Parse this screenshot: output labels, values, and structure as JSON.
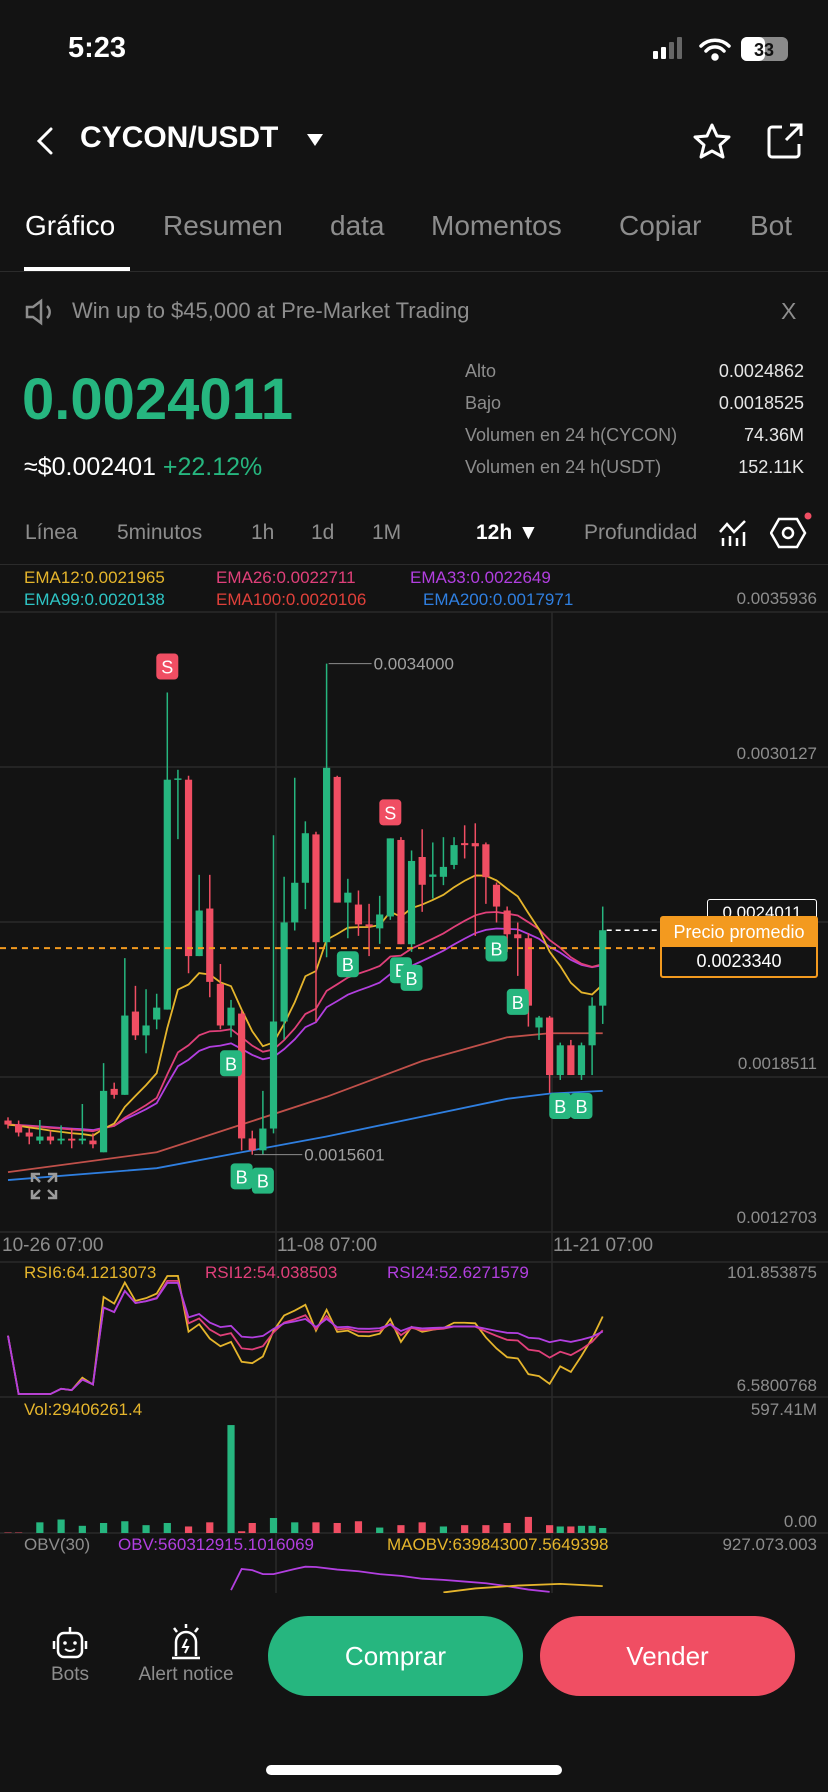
{
  "status_bar": {
    "time": "5:23",
    "battery": "33"
  },
  "header": {
    "title": "CYCON/USDT",
    "icons": [
      "back-chevron-icon",
      "dropdown-caret-icon",
      "star-icon",
      "share-icon"
    ]
  },
  "tabs": [
    {
      "label": "Gráfico",
      "active": true
    },
    {
      "label": "Resumen"
    },
    {
      "label": "data"
    },
    {
      "label": "Momentos"
    },
    {
      "label": "Copiar"
    },
    {
      "label": "Bot"
    }
  ],
  "banner": {
    "text": "Win up to $45,000 at Pre-Market Trading",
    "close": "X"
  },
  "price": {
    "last": "0.0024011",
    "usd": "≈$0.002401",
    "change": "+22.12%"
  },
  "stats": [
    {
      "label": "Alto",
      "value": "0.0024862"
    },
    {
      "label": "Bajo",
      "value": "0.0018525"
    },
    {
      "label": "Volumen en 24 h(CYCON)",
      "value": "74.36M"
    },
    {
      "label": "Volumen en 24 h(USDT)",
      "value": "152.11K"
    }
  ],
  "timeframes": {
    "items": [
      "Línea",
      "5minutos",
      "1h",
      "1d",
      "1M"
    ],
    "selected": "12h ▼",
    "depth": "Profundidad"
  },
  "ema_legend": [
    {
      "text": "EMA12:0.0021965",
      "color": "#e5b52c"
    },
    {
      "text": "EMA26:0.0022711",
      "color": "#e0407a"
    },
    {
      "text": "EMA33:0.0022649",
      "color": "#b23fe0"
    },
    {
      "text": "EMA99:0.0020138",
      "color": "#2ec4c4"
    },
    {
      "text": "EMA100:0.0020106",
      "color": "#e0403a"
    },
    {
      "text": "EMA200:0.0017971",
      "color": "#2f7fe0"
    }
  ],
  "colors": {
    "up": "#26b67f",
    "down": "#f04e63",
    "avg": "#f39a1f"
  },
  "chart_data": {
    "type": "candlestick",
    "price_axis": {
      "ticks": [
        "0.0035936",
        "0.0030127",
        "0.0024011",
        "0.0018511",
        "0.0012703"
      ],
      "range": [
        0.0012703,
        0.0035936
      ]
    },
    "time_axis": {
      "ticks": [
        "10-26 07:00",
        "11-08 07:00",
        "11-21 07:00"
      ],
      "tick_index": [
        0,
        26,
        52
      ]
    },
    "candles": [
      [
        0.001688,
        0.0017,
        0.001658,
        0.0016729
      ],
      [
        0.0016729,
        0.001688,
        0.0016283,
        0.001643
      ],
      [
        0.001643,
        0.00166,
        0.001599,
        0.001628
      ],
      [
        0.001613,
        0.00169,
        0.0016,
        0.001628
      ],
      [
        0.001628,
        0.00165,
        0.001599,
        0.001613
      ],
      [
        0.001613,
        0.00167,
        0.001599,
        0.00162
      ],
      [
        0.00162,
        0.00166,
        0.001584,
        0.001613
      ],
      [
        0.001613,
        0.00175,
        0.001599,
        0.00162
      ],
      [
        0.001613,
        0.00164,
        0.001584,
        0.001599
      ],
      [
        0.001569,
        0.0019031,
        0.001569,
        0.0017991
      ],
      [
        0.0018066,
        0.00183,
        0.00177,
        0.0017843
      ],
      [
        0.0017843,
        0.0022967,
        0.0017843,
        0.0020814
      ],
      [
        0.0020963,
        0.0021927,
        0.00199,
        0.0020071
      ],
      [
        0.0020071,
        0.00218,
        0.00194,
        0.0020442
      ],
      [
        0.0020665,
        0.0021631,
        0.00203,
        0.0021111
      ],
      [
        0.0021037,
        0.003292,
        0.0021037,
        0.0029652
      ],
      [
        0.0029652,
        0.0030023,
        0.0027424,
        0.00297
      ],
      [
        0.0029652,
        0.00298,
        0.00224,
        0.0023042
      ],
      [
        0.0023042,
        0.0026087,
        0.0023042,
        0.002475
      ],
      [
        0.0024824,
        0.0026087,
        0.00215,
        0.0022076
      ],
      [
        0.0022002,
        0.0022745,
        0.00203,
        0.0020442
      ],
      [
        0.0020442,
        0.00214,
        0.002,
        0.0021111
      ],
      [
        0.0020888,
        0.0021,
        0.0015763,
        0.0016209
      ],
      [
        0.0016209,
        0.00165,
        0.0015601,
        0.0015763
      ],
      [
        0.0015763,
        0.0017991,
        0.0015601,
        0.001658
      ],
      [
        0.001658,
        0.0027572,
        0.00164,
        0.0020591
      ],
      [
        0.0020591,
        0.0026013,
        0.0019922,
        0.0024304
      ],
      [
        0.0024304,
        0.0029726,
        0.0024,
        0.002579
      ],
      [
        0.002579,
        0.0028092,
        0.00248,
        0.0027646
      ],
      [
        0.0027602,
        0.00277,
        0.0020591,
        0.0023562
      ],
      [
        0.0023562,
        0.0034,
        0.0023,
        0.0030097
      ],
      [
        0.0029756,
        0.00298,
        0.0025047,
        0.0025047
      ],
      [
        0.0025047,
        0.0025938,
        0.0023711,
        0.0025418
      ],
      [
        0.0024973,
        0.00255,
        0.00238,
        0.002423
      ],
      [
        0.002423,
        0.0025,
        0.0023042,
        0.0024156
      ],
      [
        0.0024081,
        0.00253,
        0.00235,
        0.0024601
      ],
      [
        0.0024527,
        0.0027453,
        0.00244,
        0.0027453
      ],
      [
        0.0027394,
        0.00275,
        0.0023487,
        0.0023487
      ],
      [
        0.0023487,
        0.0027,
        0.00232,
        0.0026607
      ],
      [
        0.0026755,
        0.0027795,
        0.00247,
        0.0025715
      ],
      [
        0.0026013,
        0.00273,
        0.00252,
        0.00261
      ],
      [
        0.0026013,
        0.0027498,
        0.00257,
        0.0026384
      ],
      [
        0.0026458,
        0.0027498,
        0.00263,
        0.0027201
      ],
      [
        0.0027275,
        0.0027943,
        0.00267,
        0.00272
      ],
      [
        0.0027275,
        0.0028018,
        0.00238,
        0.0027156
      ],
      [
        0.0027231,
        0.00273,
        0.0025,
        0.0026
      ],
      [
        0.0025715,
        0.00258,
        0.00243,
        0.0024898
      ],
      [
        0.002475,
        0.00249,
        0.00232,
        0.0023859
      ],
      [
        0.0023859,
        0.00243,
        0.00223,
        0.0023711
      ],
      [
        0.0023711,
        0.00239,
        0.00204,
        0.0021185
      ],
      [
        0.0020368,
        0.00208,
        0.00199,
        0.002074
      ],
      [
        0.002074,
        0.00208,
        0.0017917,
        0.0018585
      ],
      [
        0.0018585,
        0.00198,
        0.00184,
        0.0019699
      ],
      [
        0.0019699,
        0.00199,
        0.0018585,
        0.0018585
      ],
      [
        0.0018585,
        0.00198,
        0.00184,
        0.0019699
      ],
      [
        0.0019699,
        0.00215,
        0.0018585,
        0.0021185
      ],
      [
        0.0021185,
        0.0024898,
        0.00205,
        0.0024011
      ]
    ],
    "ema100_points": [
      [
        0,
        0.0014946
      ],
      [
        14,
        0.001569
      ],
      [
        22,
        0.001673
      ],
      [
        30,
        0.001777
      ],
      [
        39,
        0.001911
      ],
      [
        47,
        0.002
      ],
      [
        51,
        0.002015
      ],
      [
        56,
        0.002015
      ]
    ],
    "ema200_points": [
      [
        0,
        0.0014649
      ],
      [
        14,
        0.0015094
      ],
      [
        22,
        0.001569
      ],
      [
        30,
        0.0016283
      ],
      [
        39,
        0.0017026
      ],
      [
        47,
        0.0017694
      ],
      [
        51,
        0.0017887
      ],
      [
        56,
        0.0017991
      ]
    ],
    "markers": [
      {
        "type": "S",
        "index": 15
      },
      {
        "type": "S",
        "index": 36
      },
      {
        "type": "B",
        "index": 21
      },
      {
        "type": "B",
        "index": 22
      },
      {
        "type": "B",
        "index": 24
      },
      {
        "type": "B",
        "index": 32
      },
      {
        "type": "B",
        "index": 37
      },
      {
        "type": "B",
        "index": 38
      },
      {
        "type": "B",
        "index": 46
      },
      {
        "type": "B",
        "index": 48
      },
      {
        "type": "B",
        "index": 52
      },
      {
        "type": "B",
        "index": 54
      }
    ],
    "high_annotation": {
      "index": 30,
      "value": "0.0034000"
    },
    "low_annotation": {
      "index": 23,
      "value": "0.0015601"
    },
    "current_price": "0.0024011",
    "avg_price": {
      "label": "Precio promedio",
      "value": "0.0023340"
    },
    "rsi": {
      "legend": [
        "RSI6:64.1213073",
        "RSI12:54.038503",
        "RSI24:52.6271579"
      ],
      "colors": [
        "#e5b52c",
        "#e0407a",
        "#b23fe0"
      ],
      "periods": [
        6,
        12,
        24
      ],
      "range": [
        6.5800768,
        101.853875
      ],
      "max_label": "101.853875",
      "min_label": "6.5800768"
    },
    "volume": {
      "legend": "Vol:29406261.4",
      "max_label": "597.41M",
      "min_label": "0.00",
      "range_m": [
        0,
        597.41
      ],
      "values_m": [
        2,
        2,
        0,
        49,
        0,
        62,
        0,
        33,
        0,
        46,
        0,
        54,
        0,
        36,
        0,
        46,
        0,
        30,
        0,
        49,
        0,
        496,
        8,
        46,
        0,
        69,
        0,
        49,
        0,
        49,
        0,
        46,
        0,
        54,
        0,
        25,
        0,
        36,
        0,
        49,
        0,
        30,
        0,
        36,
        0,
        36,
        0,
        46,
        0,
        74,
        0,
        36,
        30,
        30,
        33,
        33,
        23
      ]
    },
    "obv": {
      "legend": [
        "OBV(30)",
        "OBV:560312915.1016069",
        "MAOBV:639843007.5649398"
      ],
      "max_label": "927.073.003",
      "obv_points": [
        [
          21,
          50
        ],
        [
          22,
          420
        ],
        [
          23,
          400
        ],
        [
          24,
          330
        ],
        [
          25,
          330
        ],
        [
          27,
          420
        ],
        [
          28,
          460
        ],
        [
          29,
          455
        ],
        [
          31,
          410
        ],
        [
          33,
          380
        ],
        [
          35,
          330
        ],
        [
          37,
          300
        ],
        [
          39,
          250
        ],
        [
          41,
          230
        ],
        [
          43,
          200
        ],
        [
          45,
          170
        ],
        [
          47,
          120
        ],
        [
          49,
          60
        ],
        [
          51,
          20
        ]
      ],
      "maobv_points": [
        [
          41,
          10
        ],
        [
          44,
          80
        ],
        [
          48,
          130
        ],
        [
          52,
          160
        ],
        [
          56,
          120
        ]
      ]
    }
  },
  "bottom_bar": {
    "bots": "Bots",
    "alert": "Alert notice",
    "buy": "Comprar",
    "sell": "Vender"
  }
}
